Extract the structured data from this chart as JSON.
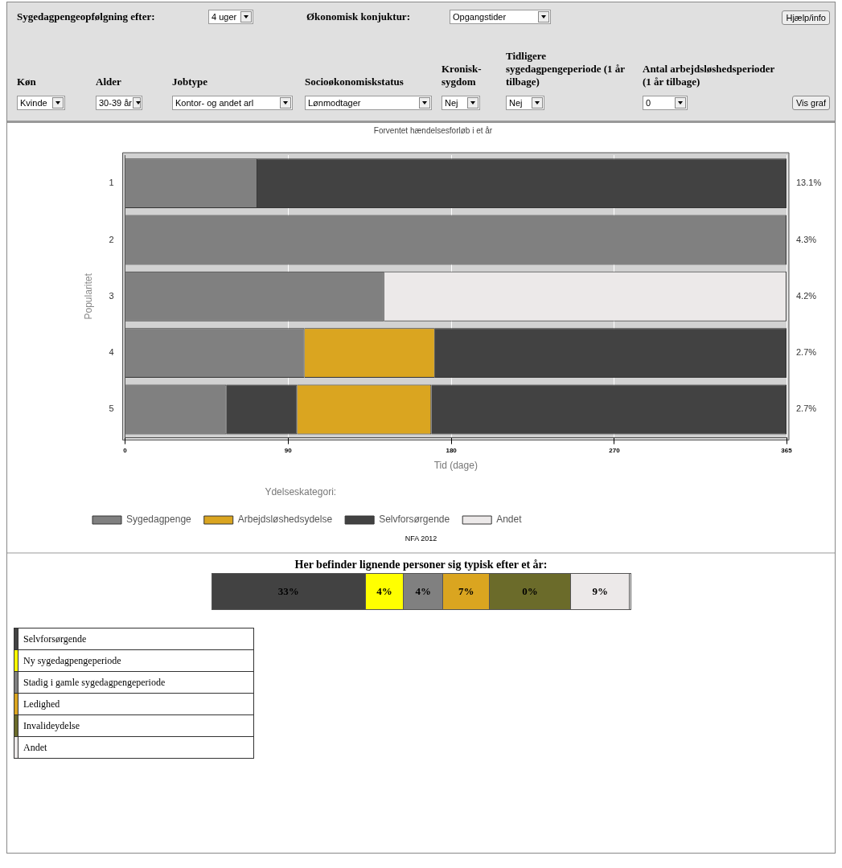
{
  "chart_data": [
    {
      "type": "other",
      "annotations": [
        "Sygedagpengeopfølgning efter:",
        "4 uger",
        "Økonomisk konjuktur:",
        "Opgangstider",
        "Hjælp/info",
        "Køn",
        "Alder",
        "Jobtype",
        "Socioøkonomiskstatus",
        "Kronisk-sygdom",
        "Tidligere sygedagpengeperiode (1 år tilbage)",
        "Antal arbejdsløshedsperioder (1 år tilbage)",
        "Kvinde",
        "30-39 år",
        "Kontor- og andet arl",
        "Lønmodtager",
        "Nej",
        "Nej",
        "0",
        "Vis graf"
      ]
    },
    {
      "type": "bar",
      "orientation": "horizontal",
      "stacked": true,
      "title": "Forventet hændelsesforløb i et år",
      "xlabel": "Tid (dage)",
      "ylabel": "Popularitet",
      "legend_title": "Ydelseskategori:",
      "categories": [
        "1",
        "2",
        "3",
        "4",
        "5"
      ],
      "series": [
        {
          "name": "Sygedagpenge",
          "color": "#808080",
          "values": [
            73,
            365,
            143,
            99,
            56
          ]
        },
        {
          "color": "#424242",
          "values": [
            null,
            null,
            null,
            null,
            39
          ]
        },
        {
          "name": "Arbejdsløshedsydelse",
          "color": "#daa520",
          "values": [
            null,
            null,
            null,
            72,
            74
          ]
        },
        {
          "name": "Selvforsørgende",
          "color": "#424242",
          "values": [
            292,
            null,
            null,
            194,
            196
          ]
        },
        {
          "name": "Andet",
          "color": "#ece9e9",
          "values": [
            null,
            null,
            222,
            null,
            null
          ]
        }
      ],
      "xlim": [
        0,
        365
      ],
      "xticks": [
        0,
        90,
        180,
        270,
        365
      ],
      "grid": "x",
      "legend": "bottom",
      "annotations": [
        "13.1%",
        "4.3%",
        "4.2%",
        "2.7%",
        "2.7%",
        "NFA 2012"
      ]
    },
    {
      "type": "other",
      "title": "Her befinder lignende personer sig typisk efter et år:",
      "annotations": [
        "33%",
        "4%",
        "4%",
        "7%",
        "0%",
        "9%",
        "Selvforsørgende",
        "Ny sygedagpengeperiode",
        "Stadig i gamle sygedagpengeperiode",
        "Ledighed",
        "Invalideydelse",
        "Andet"
      ],
      "colors": [
        "#424242",
        "#ffff00",
        "#808080",
        "#daa520",
        "#6b6b2a",
        "#ece9e9"
      ]
    }
  ]
}
